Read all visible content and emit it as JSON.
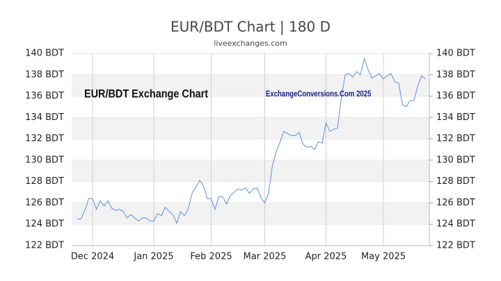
{
  "chart_data": {
    "type": "line",
    "title": "EUR/BDT Chart | 180 D",
    "subtitle": "liveexchanges.com",
    "annotations": [
      "EUR/BDT Exchange Chart",
      "ExchangeConversions.Com 2025"
    ],
    "categories": [
      null,
      null,
      null,
      null,
      "Dec 2024",
      null,
      null,
      null,
      null,
      null,
      null,
      null,
      null,
      null,
      null,
      null,
      null,
      null,
      null,
      null,
      "Jan 2025",
      null,
      null,
      null,
      null,
      null,
      null,
      null,
      null,
      null,
      null,
      null,
      null,
      null,
      null,
      "Feb 2025",
      null,
      null,
      null,
      null,
      null,
      null,
      null,
      null,
      null,
      null,
      null,
      null,
      null,
      "Mar 2025",
      null,
      null,
      null,
      null,
      null,
      null,
      null,
      null,
      null,
      null,
      null,
      null,
      null,
      null,
      null,
      "Apr 2025",
      null,
      null,
      null,
      null,
      null,
      null,
      null,
      null,
      null,
      null,
      null,
      null,
      null,
      null,
      "May 2025",
      null,
      null,
      null,
      null,
      null,
      null,
      null,
      null,
      null,
      null,
      null
    ],
    "series": [
      {
        "name": "EUR/BDT",
        "color": "#5b8fd6",
        "values": [
          124.5,
          124.5,
          125.3,
          126.4,
          126.4,
          125.4,
          126.2,
          125.7,
          126.2,
          125.5,
          125.3,
          125.4,
          125.2,
          124.6,
          124.9,
          124.6,
          124.3,
          124.6,
          124.6,
          124.3,
          124.3,
          125.0,
          124.8,
          125.6,
          125.2,
          124.9,
          124.1,
          125.2,
          124.8,
          125.4,
          126.9,
          127.5,
          128.1,
          127.6,
          126.4,
          126.4,
          125.4,
          126.6,
          126.6,
          125.9,
          126.7,
          127.0,
          127.3,
          127.2,
          127.4,
          126.9,
          127.3,
          127.4,
          126.5,
          126.0,
          126.9,
          129.5,
          130.8,
          131.7,
          132.7,
          132.5,
          132.3,
          132.3,
          132.6,
          131.5,
          131.2,
          131.3,
          131.0,
          131.7,
          131.6,
          133.5,
          132.7,
          132.9,
          133.0,
          135.8,
          138.0,
          138.1,
          137.8,
          138.3,
          138.0,
          139.5,
          138.5,
          137.7,
          137.9,
          138.1,
          137.6,
          137.9,
          138.1,
          137.3,
          137.2,
          135.2,
          135.0,
          135.6,
          135.6,
          137.0,
          137.9,
          137.6
        ]
      }
    ],
    "ylim": [
      122,
      140
    ],
    "yticks": [
      {
        "value": 122,
        "label": "122 BDT"
      },
      {
        "value": 124,
        "label": "124 BDT"
      },
      {
        "value": 126,
        "label": "126 BDT"
      },
      {
        "value": 128,
        "label": "128 BDT"
      },
      {
        "value": 130,
        "label": "130 BDT"
      },
      {
        "value": 132,
        "label": "132 BDT"
      },
      {
        "value": 134,
        "label": "134 BDT"
      },
      {
        "value": 136,
        "label": "136 BDT"
      },
      {
        "value": 138,
        "label": "138 BDT"
      },
      {
        "value": 140,
        "label": "140 BDT"
      }
    ],
    "grid": true
  }
}
